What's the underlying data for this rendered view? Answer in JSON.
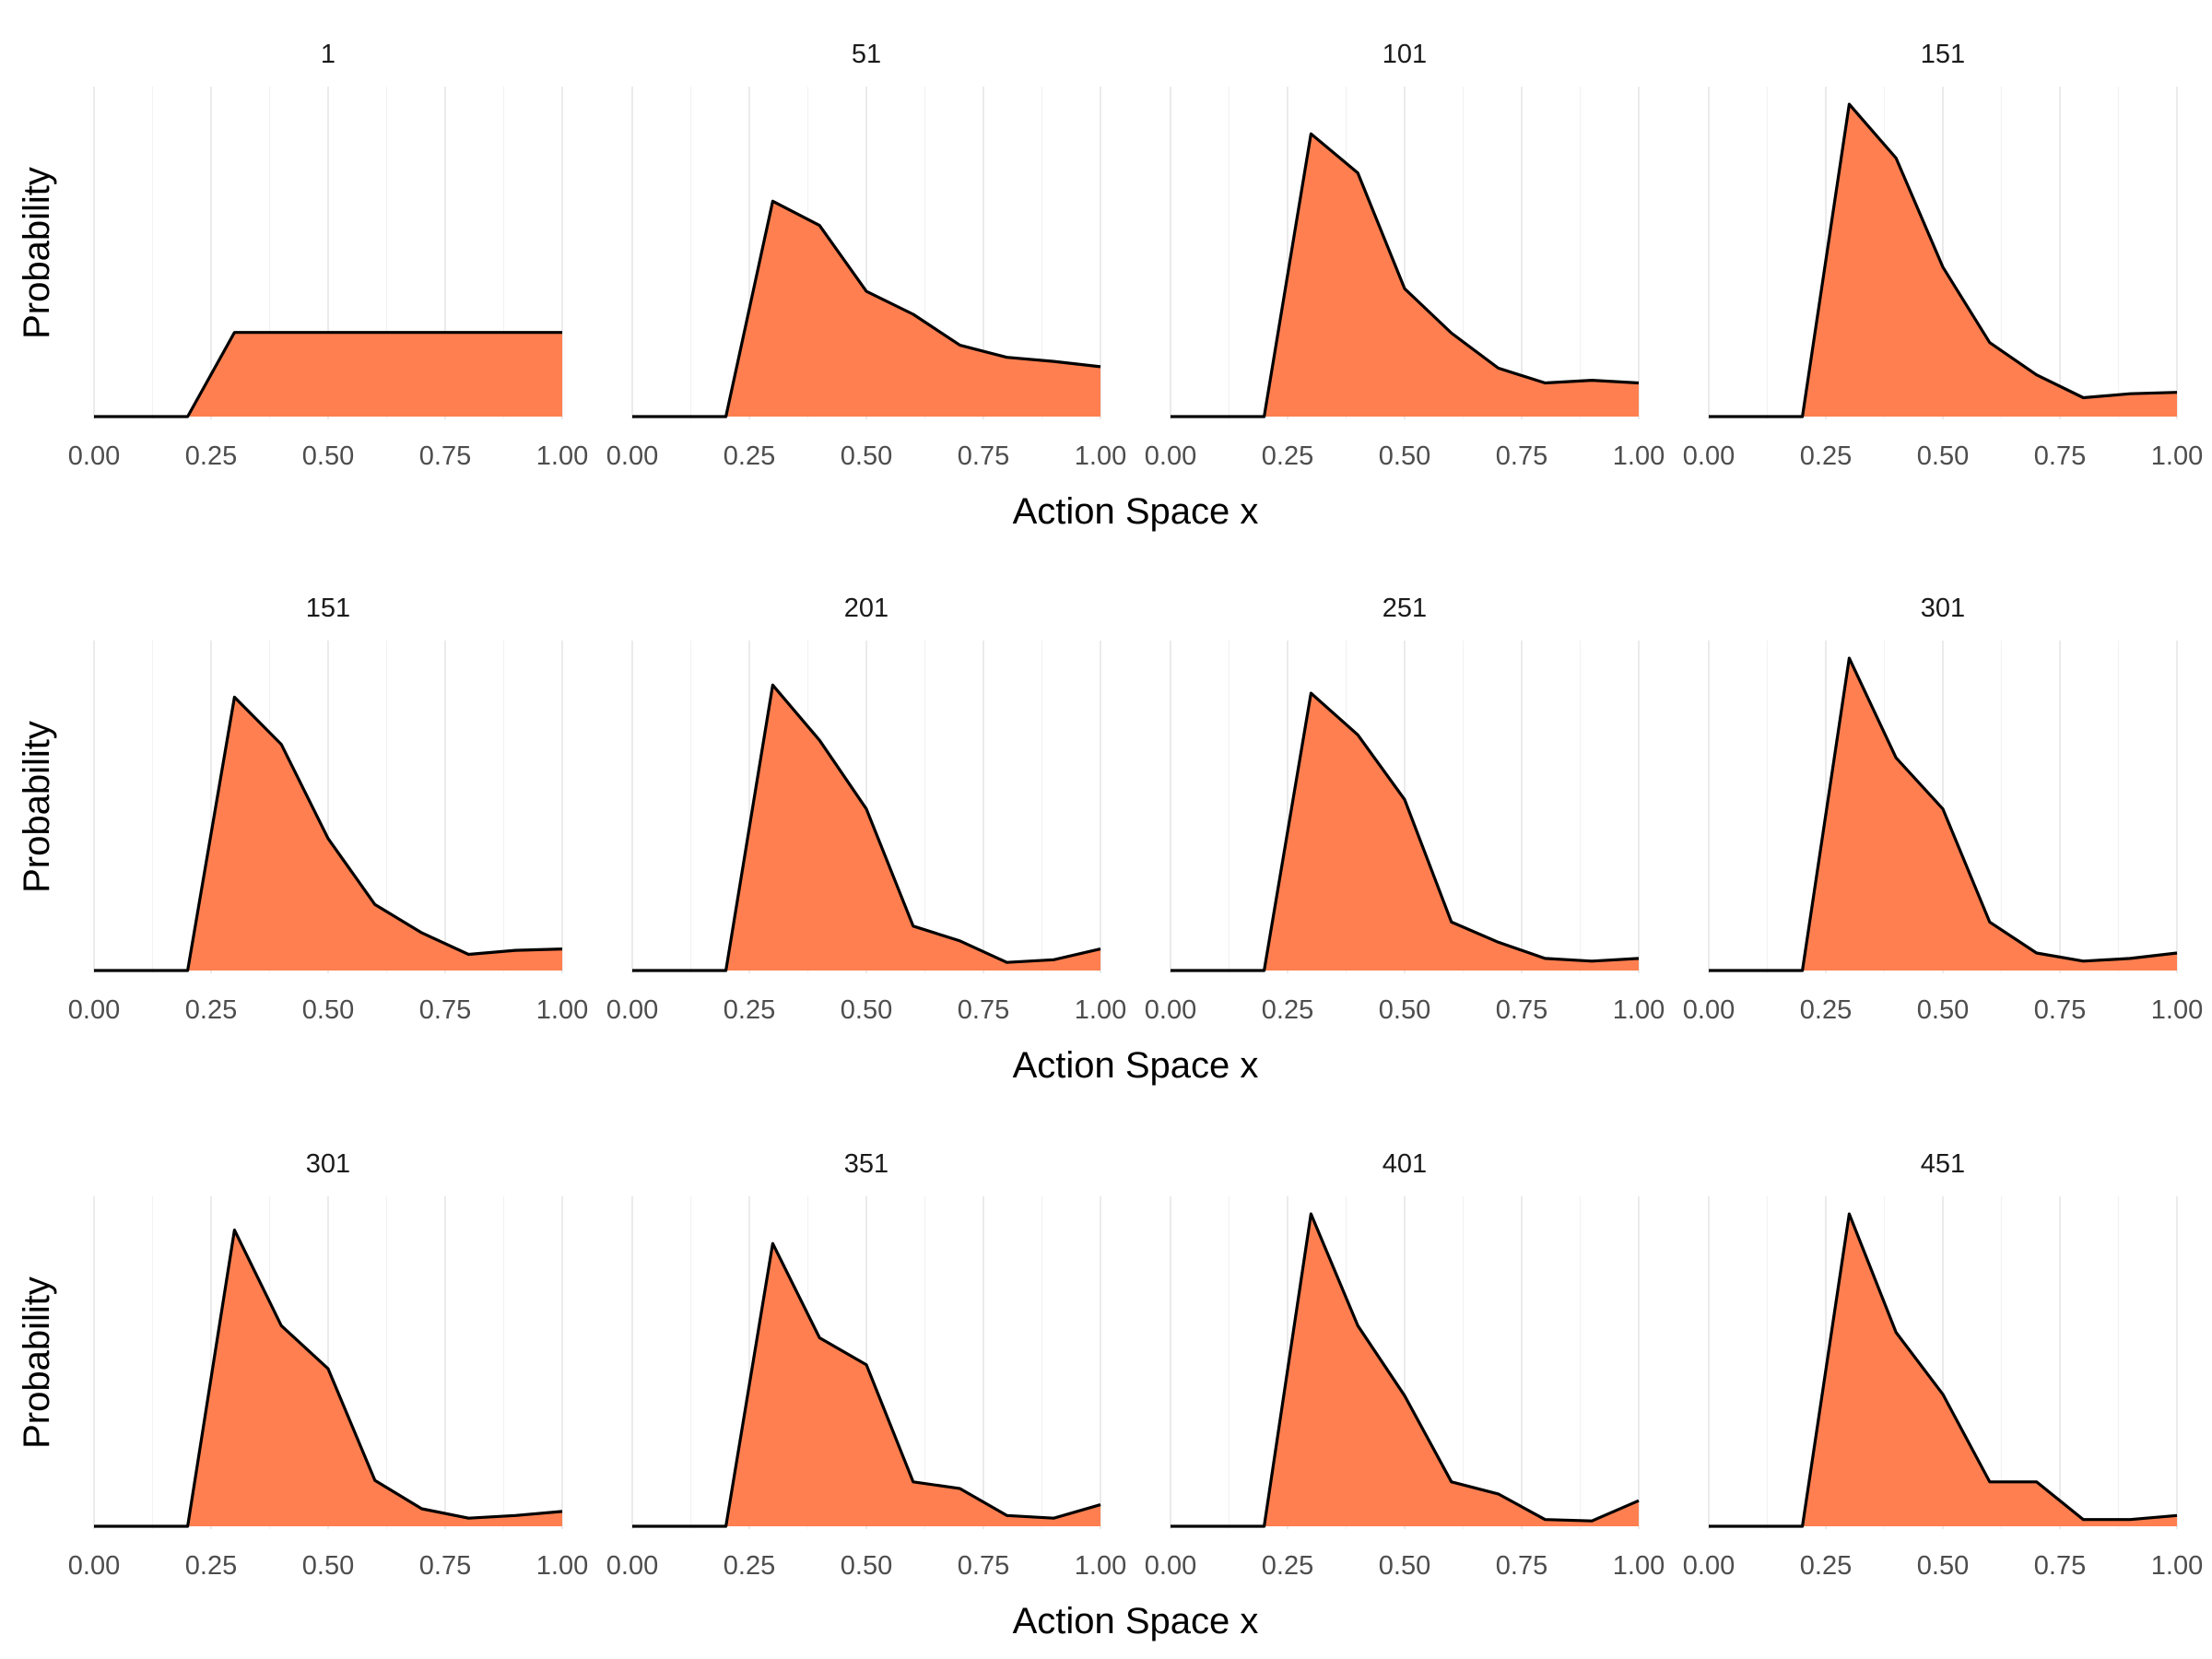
{
  "chart_data": {
    "type": "area",
    "layout": "facet-grid",
    "fill_color": "#FF7F50",
    "line_color": "#000000",
    "x_breaks": [
      "0.00",
      "0.25",
      "0.50",
      "0.75",
      "1.00"
    ],
    "xlim": [
      0,
      1
    ],
    "x": [
      0,
      0.1,
      0.2,
      0.3,
      0.4,
      0.5,
      0.6,
      0.7,
      0.8,
      0.9,
      1.0
    ],
    "ylim": [
      0,
      0.23
    ],
    "y_ticks_visible": false,
    "grid": "vertical-only",
    "rows": [
      {
        "xlabel": "Action Space x",
        "ylabel": "Probability",
        "panels": [
          {
            "title": "1",
            "values": [
              0,
              0,
              0,
              0.0625,
              0.0625,
              0.0625,
              0.0625,
              0.0625,
              0.0625,
              0.0625,
              0.0625
            ]
          },
          {
            "title": "51",
            "values": [
              0,
              0,
              0,
              0.16,
              0.142,
              0.093,
              0.076,
              0.053,
              0.044,
              0.041,
              0.037
            ]
          },
          {
            "title": "101",
            "values": [
              0,
              0,
              0,
              0.21,
              0.181,
              0.095,
              0.062,
              0.036,
              0.025,
              0.027,
              0.025
            ]
          },
          {
            "title": "151",
            "values": [
              0,
              0,
              0,
              0.232,
              0.192,
              0.111,
              0.055,
              0.031,
              0.014,
              0.017,
              0.018
            ]
          }
        ]
      },
      {
        "xlabel": "Action Space x",
        "ylabel": "Probability",
        "panels": [
          {
            "title": "151",
            "values": [
              0,
              0,
              0,
              0.203,
              0.168,
              0.098,
              0.049,
              0.028,
              0.012,
              0.015,
              0.016
            ]
          },
          {
            "title": "201",
            "values": [
              0,
              0,
              0,
              0.212,
              0.171,
              0.12,
              0.033,
              0.022,
              0.006,
              0.008,
              0.016
            ]
          },
          {
            "title": "251",
            "values": [
              0,
              0,
              0,
              0.206,
              0.175,
              0.127,
              0.036,
              0.021,
              0.009,
              0.007,
              0.009
            ]
          },
          {
            "title": "301",
            "values": [
              0,
              0,
              0,
              0.232,
              0.158,
              0.12,
              0.036,
              0.013,
              0.007,
              0.009,
              0.013
            ]
          }
        ]
      },
      {
        "xlabel": "Action Space x",
        "ylabel": "Probability",
        "panels": [
          {
            "title": "301",
            "values": [
              0,
              0,
              0,
              0.22,
              0.149,
              0.117,
              0.034,
              0.013,
              0.006,
              0.008,
              0.011
            ]
          },
          {
            "title": "351",
            "values": [
              0,
              0,
              0,
              0.21,
              0.14,
              0.12,
              0.033,
              0.028,
              0.008,
              0.006,
              0.016
            ]
          },
          {
            "title": "401",
            "values": [
              0,
              0,
              0,
              0.232,
              0.149,
              0.097,
              0.033,
              0.024,
              0.005,
              0.004,
              0.019
            ]
          },
          {
            "title": "451",
            "values": [
              0,
              0,
              0,
              0.232,
              0.144,
              0.098,
              0.033,
              0.033,
              0.005,
              0.005,
              0.008
            ]
          }
        ]
      }
    ]
  }
}
